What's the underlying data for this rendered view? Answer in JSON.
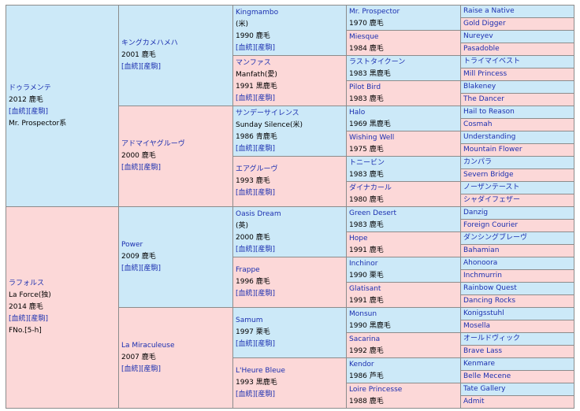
{
  "gen1": [
    {
      "sex": "m",
      "name": "ドゥラメンテ",
      "year_color": "2012 鹿毛",
      "links": "[血統][産駒]",
      "sub": "Mr. Prospector系"
    },
    {
      "sex": "f",
      "name": "ラフォルス",
      "alt": "La Force(独)",
      "year_color": "2014 鹿毛",
      "links": "[血統][産駒]",
      "sub": "FNo.[5-h]"
    }
  ],
  "gen2": [
    {
      "sex": "m",
      "name": "キングカメハメハ",
      "year_color": "2001 鹿毛",
      "links": "[血統][産駒]"
    },
    {
      "sex": "f",
      "name": "アドマイヤグルーヴ",
      "year_color": "2000 鹿毛",
      "links": "[血統][産駒]"
    },
    {
      "sex": "m",
      "name": "Power",
      "year_color": "2009 鹿毛",
      "links": "[血統][産駒]"
    },
    {
      "sex": "f",
      "name": "La Miraculeuse",
      "year_color": "2007 鹿毛",
      "links": "[血統][産駒]"
    }
  ],
  "gen3": [
    {
      "sex": "m",
      "name": "Kingmambo",
      "alt": "(米)",
      "year_color": "1990 鹿毛",
      "links": "[血統][産駒]"
    },
    {
      "sex": "f",
      "name": "マンファス",
      "alt": "Manfath(愛)",
      "year_color": "1991 黒鹿毛",
      "links": "[血統][産駒]"
    },
    {
      "sex": "m",
      "name": "サンデーサイレンス",
      "alt": "Sunday Silence(米)",
      "year_color": "1986 青鹿毛",
      "links": "[血統][産駒]"
    },
    {
      "sex": "f",
      "name": "エアグルーヴ",
      "year_color": "1993 鹿毛",
      "links": "[血統][産駒]"
    },
    {
      "sex": "m",
      "name": "Oasis Dream",
      "alt": "(英)",
      "year_color": "2000 鹿毛",
      "links": "[血統][産駒]"
    },
    {
      "sex": "f",
      "name": "Frappe",
      "year_color": "1996 鹿毛",
      "links": "[血統][産駒]"
    },
    {
      "sex": "m",
      "name": "Samum",
      "year_color": "1997 栗毛",
      "links": "[血統][産駒]"
    },
    {
      "sex": "f",
      "name": "L'Heure Bleue",
      "year_color": "1993 黒鹿毛",
      "links": "[血統][産駒]"
    }
  ],
  "gen4": [
    {
      "sex": "m",
      "name": "Mr. Prospector",
      "year_color": "1970 鹿毛"
    },
    {
      "sex": "f",
      "name": "Miesque",
      "year_color": "1984 鹿毛"
    },
    {
      "sex": "m",
      "name": "ラストタイクーン",
      "year_color": "1983 黒鹿毛"
    },
    {
      "sex": "f",
      "name": "Pilot Bird",
      "year_color": "1983 鹿毛"
    },
    {
      "sex": "m",
      "name": "Halo",
      "year_color": "1969 黒鹿毛"
    },
    {
      "sex": "f",
      "name": "Wishing Well",
      "year_color": "1975 鹿毛"
    },
    {
      "sex": "m",
      "name": "トニービン",
      "year_color": "1983 鹿毛"
    },
    {
      "sex": "f",
      "name": "ダイナカール",
      "year_color": "1980 鹿毛"
    },
    {
      "sex": "m",
      "name": "Green Desert",
      "year_color": "1983 鹿毛"
    },
    {
      "sex": "f",
      "name": "Hope",
      "year_color": "1991 鹿毛"
    },
    {
      "sex": "m",
      "name": "Inchinor",
      "year_color": "1990 栗毛"
    },
    {
      "sex": "f",
      "name": "Glatisant",
      "year_color": "1991 鹿毛"
    },
    {
      "sex": "m",
      "name": "Monsun",
      "year_color": "1990 黒鹿毛"
    },
    {
      "sex": "f",
      "name": "Sacarina",
      "year_color": "1992 鹿毛"
    },
    {
      "sex": "m",
      "name": "Kendor",
      "year_color": "1986 芦毛"
    },
    {
      "sex": "f",
      "name": "Loire Princesse",
      "year_color": "1988 鹿毛"
    }
  ],
  "gen5": [
    {
      "sex": "m",
      "name": "Raise a Native"
    },
    {
      "sex": "f",
      "name": "Gold Digger"
    },
    {
      "sex": "m",
      "name": "Nureyev"
    },
    {
      "sex": "f",
      "name": "Pasadoble"
    },
    {
      "sex": "m",
      "name": "トライマイベスト"
    },
    {
      "sex": "f",
      "name": "Mill Princess"
    },
    {
      "sex": "m",
      "name": "Blakeney"
    },
    {
      "sex": "f",
      "name": "The Dancer"
    },
    {
      "sex": "m",
      "name": "Hail to Reason"
    },
    {
      "sex": "f",
      "name": "Cosmah"
    },
    {
      "sex": "m",
      "name": "Understanding"
    },
    {
      "sex": "f",
      "name": "Mountain Flower"
    },
    {
      "sex": "m",
      "name": "カンパラ"
    },
    {
      "sex": "f",
      "name": "Severn Bridge"
    },
    {
      "sex": "m",
      "name": "ノーザンテースト"
    },
    {
      "sex": "f",
      "name": "シャダイフェザー"
    },
    {
      "sex": "m",
      "name": "Danzig"
    },
    {
      "sex": "f",
      "name": "Foreign Courier"
    },
    {
      "sex": "m",
      "name": "ダンシングブレーヴ"
    },
    {
      "sex": "f",
      "name": "Bahamian"
    },
    {
      "sex": "m",
      "name": "Ahonoora"
    },
    {
      "sex": "f",
      "name": "Inchmurrin"
    },
    {
      "sex": "m",
      "name": "Rainbow Quest"
    },
    {
      "sex": "f",
      "name": "Dancing Rocks"
    },
    {
      "sex": "m",
      "name": "Konigsstuhl"
    },
    {
      "sex": "f",
      "name": "Mosella"
    },
    {
      "sex": "m",
      "name": "オールドヴィック"
    },
    {
      "sex": "f",
      "name": "Brave Lass"
    },
    {
      "sex": "m",
      "name": "Kenmare"
    },
    {
      "sex": "f",
      "name": "Belle Mecene"
    },
    {
      "sex": "m",
      "name": "Tate Gallery"
    },
    {
      "sex": "f",
      "name": "Admit"
    }
  ],
  "colors": {
    "male_bg": "#cce9f8",
    "female_bg": "#fcd8d8",
    "border": "#8c8c8c",
    "link": "#1b2fb0"
  }
}
